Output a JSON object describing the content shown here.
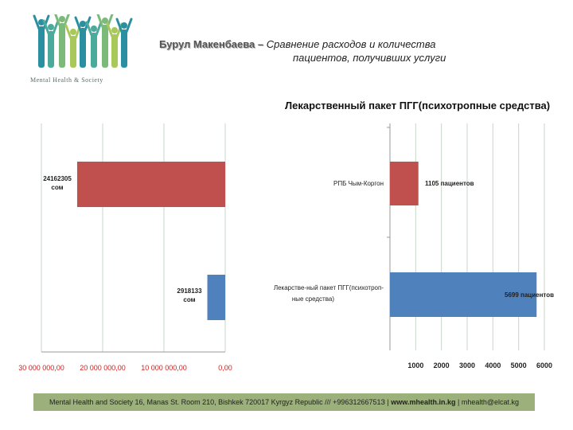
{
  "header": {
    "author": "Бурул Макенбаева –",
    "subject_line1": "Сравнение расходов и количества",
    "subject_line2": "пациентов, получивших услуги"
  },
  "logo": {
    "text": "Mental Health & Society",
    "colors": [
      "#2a8fa0",
      "#4aaa9c",
      "#7cba7a",
      "#a9c85a"
    ]
  },
  "chart_data": [
    {
      "type": "bar",
      "orientation": "horizontal",
      "x_reversed": true,
      "title": "",
      "categories": [
        "РПБ Чым-Коргон",
        "Лекарственный пакет ПГГ(психотропные средства)"
      ],
      "values": [
        24162305,
        2918133
      ],
      "data_labels": [
        "24162305 сом",
        "2918133 сом"
      ],
      "colors": [
        "#c0504d",
        "#4f81bd"
      ],
      "xlim": [
        0,
        30000000
      ],
      "xticks": [
        30000000,
        20000000,
        10000000,
        0
      ],
      "xtick_labels": [
        "30 000 000,00",
        "20 000 000,00",
        "10 000 000,00",
        "0,00"
      ],
      "grid": true
    },
    {
      "type": "bar",
      "orientation": "horizontal",
      "title": "Лекарственный пакет ПГГ(психотропные средства)",
      "categories": [
        "РПБ Чым-Коргон",
        "Лекарственный пакет ПГГ(психотропные средства)"
      ],
      "category_labels": [
        "РПБ Чым-Коргон",
        "Лекарстве-ный пакет ПГГ(психотроп-ные средства)"
      ],
      "values": [
        1105,
        5699
      ],
      "data_labels": [
        "1105 пациентов",
        "5699 пациентов"
      ],
      "colors": [
        "#c0504d",
        "#4f81bd"
      ],
      "xlim": [
        0,
        6000
      ],
      "xticks": [
        1000,
        2000,
        3000,
        4000,
        5000,
        6000
      ],
      "grid": true
    }
  ],
  "footer": {
    "address": "Mental Health and Society 16, Manas St. Room 210, Bishkek 720017 Kyrgyz Republic /// +99631266751З |",
    "website": "www.mhealth.in.kg",
    "email": "| mhealth@elcat.kg"
  }
}
